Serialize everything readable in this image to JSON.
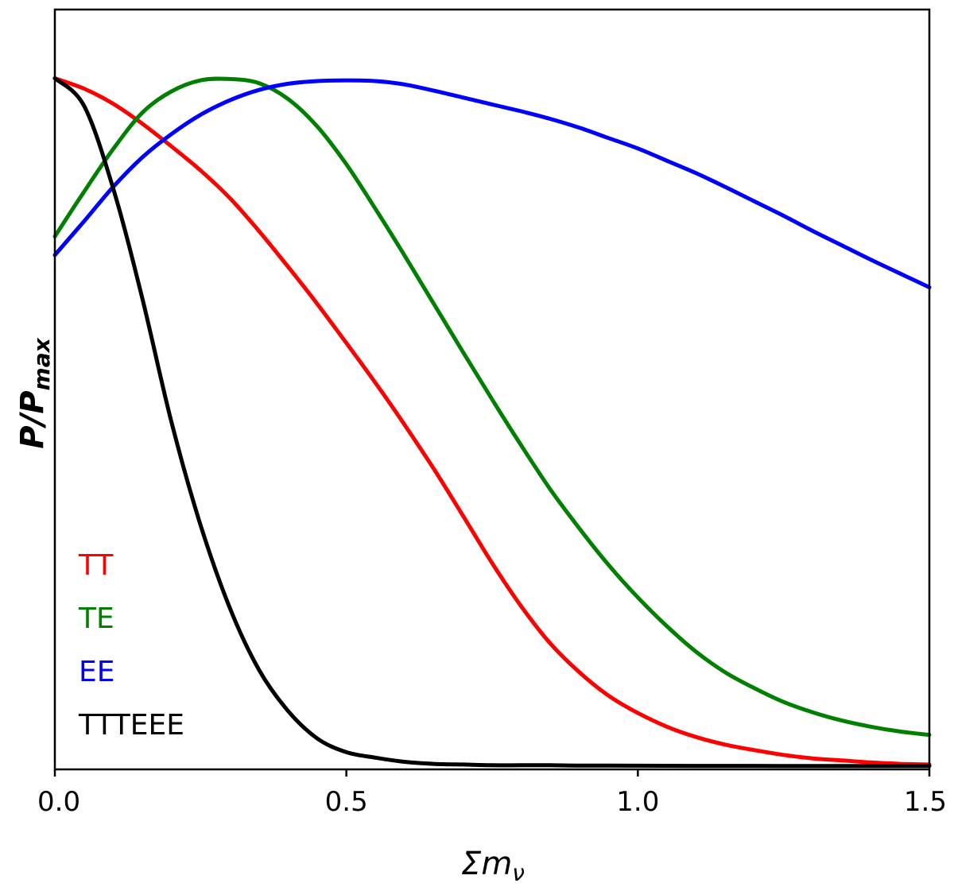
{
  "chart_data": {
    "type": "line",
    "title": "",
    "xlabel": "Σm",
    "xlabel_sub": "ν",
    "ylabel": "P/P",
    "ylabel_sub": "max",
    "xlim": [
      0.0,
      1.5
    ],
    "ylim": [
      -0.005,
      1.1
    ],
    "xticks": [
      0.0,
      0.5,
      1.0,
      1.5
    ],
    "xtick_labels": [
      "0.0",
      "0.5",
      "1.0",
      "1.5"
    ],
    "yticks_visible": false,
    "grid": false,
    "legend_position": "bottom-left",
    "x": [
      0.0,
      0.05,
      0.1,
      0.15,
      0.2,
      0.25,
      0.3,
      0.35,
      0.4,
      0.45,
      0.5,
      0.55,
      0.6,
      0.65,
      0.7,
      0.75,
      0.8,
      0.85,
      0.9,
      0.95,
      1.0,
      1.05,
      1.1,
      1.15,
      1.2,
      1.25,
      1.3,
      1.35,
      1.4,
      1.45,
      1.5
    ],
    "series": [
      {
        "name": "TT",
        "color": "#ff0000",
        "values": [
          1.0,
          0.985,
          0.963,
          0.934,
          0.901,
          0.866,
          0.826,
          0.778,
          0.726,
          0.672,
          0.615,
          0.557,
          0.496,
          0.432,
          0.364,
          0.295,
          0.232,
          0.178,
          0.136,
          0.102,
          0.077,
          0.057,
          0.042,
          0.031,
          0.023,
          0.016,
          0.011,
          0.008,
          0.005,
          0.003,
          0.002
        ]
      },
      {
        "name": "TE",
        "color": "#008000",
        "values": [
          0.77,
          0.835,
          0.897,
          0.95,
          0.981,
          0.997,
          0.999,
          0.993,
          0.97,
          0.93,
          0.875,
          0.81,
          0.742,
          0.672,
          0.602,
          0.533,
          0.466,
          0.402,
          0.345,
          0.292,
          0.245,
          0.203,
          0.166,
          0.136,
          0.113,
          0.093,
          0.078,
          0.066,
          0.057,
          0.05,
          0.045
        ]
      },
      {
        "name": "EE",
        "color": "#0000ff",
        "values": [
          0.743,
          0.792,
          0.842,
          0.885,
          0.919,
          0.947,
          0.968,
          0.983,
          0.992,
          0.996,
          0.997,
          0.996,
          0.991,
          0.982,
          0.972,
          0.962,
          0.952,
          0.941,
          0.928,
          0.913,
          0.898,
          0.88,
          0.862,
          0.842,
          0.821,
          0.8,
          0.778,
          0.757,
          0.736,
          0.716,
          0.696
        ]
      },
      {
        "name": "TTTEEE",
        "color": "#000000",
        "values": [
          1.0,
          0.96,
          0.84,
          0.68,
          0.5,
          0.35,
          0.23,
          0.14,
          0.08,
          0.04,
          0.02,
          0.012,
          0.006,
          0.003,
          0.002,
          0.001,
          0.001,
          0.001,
          0.0005,
          0.0005,
          0.0003,
          0.0002,
          0.0001,
          0.0001,
          0.0001,
          0.0,
          0.0,
          0.0,
          0.0,
          0.0,
          0.0
        ]
      }
    ]
  }
}
